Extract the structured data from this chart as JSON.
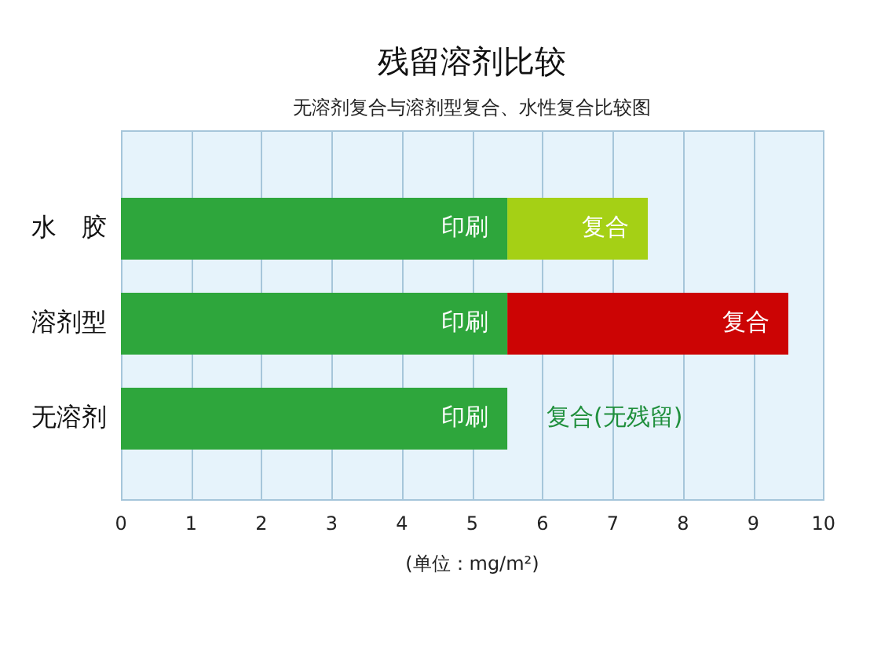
{
  "chart_data": {
    "type": "bar",
    "orientation": "horizontal",
    "stacked": true,
    "title": "残留溶剂比较",
    "subtitle": "无溶剂复合与溶剂型复合、水性复合比较图",
    "xlabel": "(单位：mg/m²)",
    "categories": [
      "水　胶",
      "溶剂型",
      "无溶剂"
    ],
    "series": [
      {
        "name": "印刷",
        "color": "#2ea63c",
        "values": [
          5.5,
          5.5,
          5.5
        ]
      },
      {
        "name": "复合",
        "colors": [
          "#a5d015",
          "#cc0404",
          null
        ],
        "values": [
          2,
          4,
          0
        ]
      }
    ],
    "xlim": [
      0,
      10
    ],
    "xticks": [
      0,
      1,
      2,
      3,
      4,
      5,
      6,
      7,
      8,
      9,
      10
    ],
    "grid": "x",
    "legend": false,
    "annotations": [
      "复合(无残留)"
    ]
  }
}
